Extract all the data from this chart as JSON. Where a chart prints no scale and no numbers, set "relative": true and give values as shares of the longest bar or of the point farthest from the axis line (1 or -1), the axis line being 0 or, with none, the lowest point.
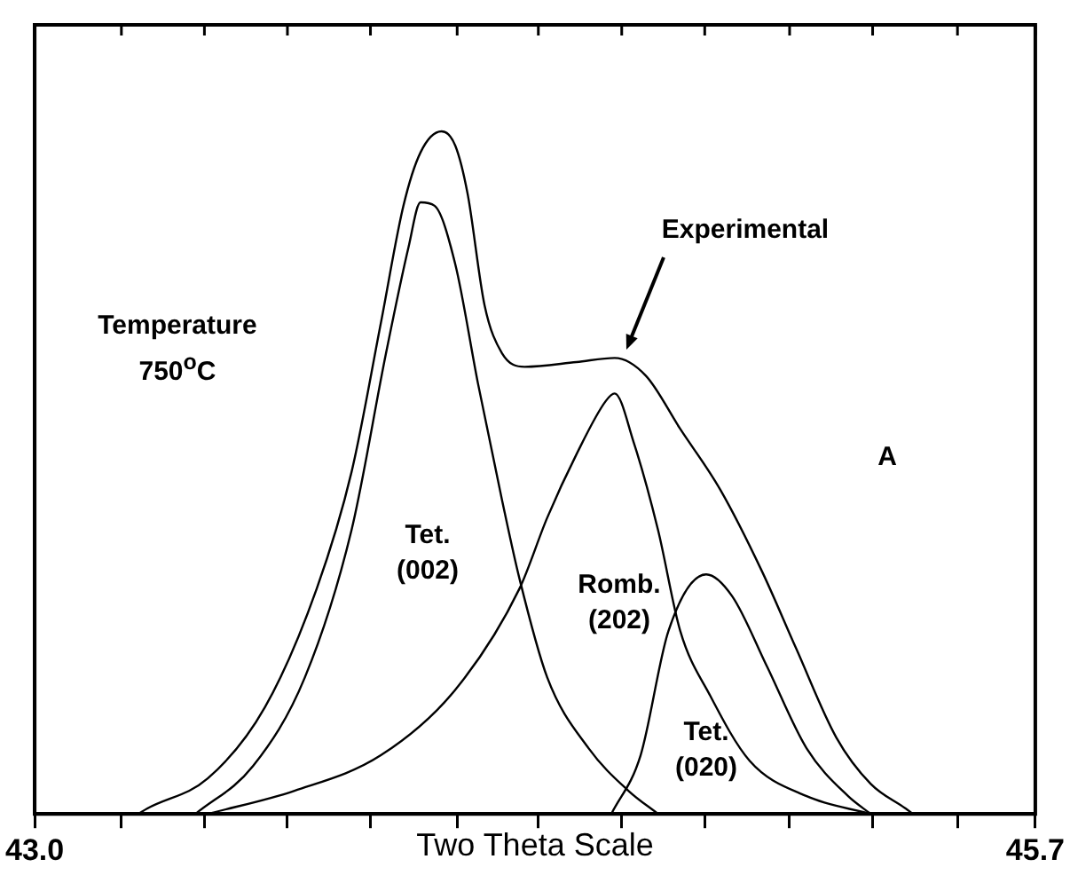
{
  "chart_data": {
    "type": "line",
    "relative": true,
    "xlabel": "Two Theta Scale",
    "xlim": [
      43.0,
      45.7
    ],
    "xticks": [
      {
        "value": 43.0,
        "label": "43.0"
      },
      {
        "value": 43.234,
        "label": null
      },
      {
        "value": 43.458,
        "label": null
      },
      {
        "value": 43.682,
        "label": null
      },
      {
        "value": 43.906,
        "label": null
      },
      {
        "value": 44.14,
        "label": null
      },
      {
        "value": 44.359,
        "label": null
      },
      {
        "value": 44.584,
        "label": null
      },
      {
        "value": 44.808,
        "label": null
      },
      {
        "value": 45.037,
        "label": null
      },
      {
        "value": 45.261,
        "label": null
      },
      {
        "value": 45.49,
        "label": null
      },
      {
        "value": 45.7,
        "label": "45.7"
      }
    ],
    "grid": false,
    "legend": false,
    "marker": "none",
    "line_style": "solid",
    "series": [
      {
        "color": "#000000",
        "x": [
          43.28,
          43.304,
          43.467,
          43.621,
          43.761,
          43.855,
          43.934,
          43.995,
          44.041,
          44.098,
          44.135,
          44.168,
          44.214,
          44.261,
          44.322,
          44.462,
          44.565,
          44.649,
          44.742,
          44.85,
          44.962,
          45.055,
          45.163,
          45.256,
          45.35,
          45.37
        ],
        "values": [
          0,
          0.008,
          0.052,
          0.156,
          0.33,
          0.501,
          0.719,
          0.891,
          0.969,
          1.0,
          0.979,
          0.909,
          0.745,
          0.675,
          0.655,
          0.662,
          0.668,
          0.642,
          0.564,
          0.475,
          0.356,
          0.242,
          0.112,
          0.044,
          0.008,
          0
        ]
      },
      {
        "color": "#000000",
        "x": [
          43.434,
          43.589,
          43.729,
          43.855,
          43.948,
          44.009,
          44.041,
          44.079,
          44.135,
          44.196,
          44.261,
          44.308,
          44.383,
          44.495,
          44.602,
          44.682
        ],
        "values": [
          0,
          0.07,
          0.2,
          0.416,
          0.675,
          0.831,
          0.896,
          0.891,
          0.805,
          0.631,
          0.46,
          0.345,
          0.2,
          0.096,
          0.034,
          0
        ]
      },
      {
        "color": "#000000",
        "x": [
          43.467,
          43.701,
          43.934,
          44.135,
          44.308,
          44.383,
          44.462,
          44.541,
          44.565,
          44.616,
          44.682,
          44.742,
          44.822,
          44.929,
          45.083,
          45.256
        ],
        "values": [
          0,
          0.034,
          0.086,
          0.182,
          0.33,
          0.434,
          0.527,
          0.605,
          0.616,
          0.545,
          0.416,
          0.268,
          0.174,
          0.078,
          0.026,
          0
        ]
      },
      {
        "color": "#000000",
        "x": [
          44.556,
          44.635,
          44.71,
          44.812,
          44.882,
          44.976,
          45.083,
          45.195,
          45.256
        ],
        "values": [
          0,
          0.086,
          0.268,
          0.351,
          0.319,
          0.216,
          0.096,
          0.026,
          0
        ]
      }
    ],
    "annotations": [
      "Experimental",
      "Tet. (002)",
      "Romb. (202)",
      "Tet. (020)",
      "Temperature 750$^{o}$C",
      "A"
    ]
  }
}
